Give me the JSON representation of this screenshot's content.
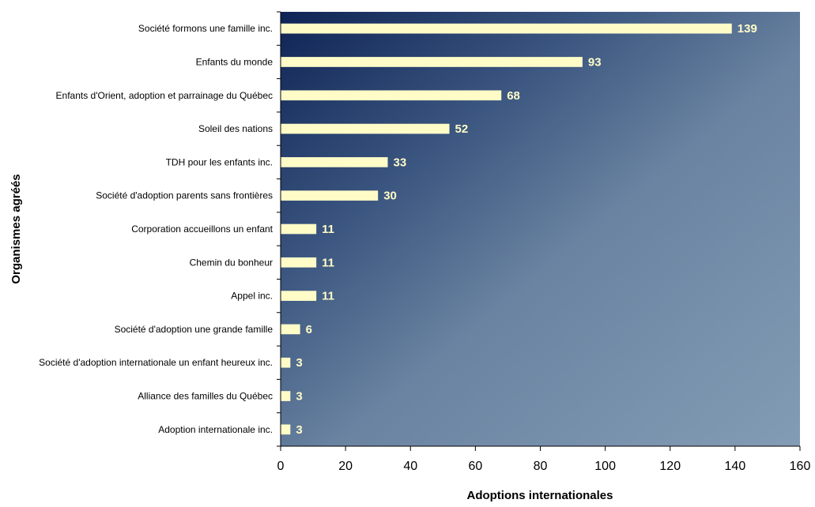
{
  "chart_data": {
    "type": "bar",
    "orientation": "horizontal",
    "categories": [
      "Société formons une famille inc.",
      "Enfants du monde",
      "Enfants d'Orient, adoption et parrainage du Québec",
      "Soleil des nations",
      "TDH pour les enfants inc.",
      "Société d'adoption parents sans frontières",
      "Corporation accueillons un enfant",
      "Chemin du bonheur",
      "Appel inc.",
      "Société d'adoption une grande famille",
      "Société d'adoption internationale un enfant heureux inc.",
      "Alliance des familles du Québec",
      "Adoption internationale inc."
    ],
    "values": [
      139,
      93,
      68,
      52,
      33,
      30,
      11,
      11,
      11,
      6,
      3,
      3,
      3
    ],
    "xlabel": "Adoptions internationales",
    "ylabel": "Organismes agréés",
    "xlim": [
      0,
      160
    ],
    "xticks": [
      "0",
      "20",
      "40",
      "60",
      "80",
      "100",
      "120",
      "140",
      "160"
    ],
    "bar_color": "#fffcc8",
    "label_color": "#fffcc8",
    "plot_gradient": [
      "#0f2455",
      "#3a557f",
      "#6a83a1",
      "#839cb5"
    ],
    "grid": false,
    "legend": "none"
  }
}
